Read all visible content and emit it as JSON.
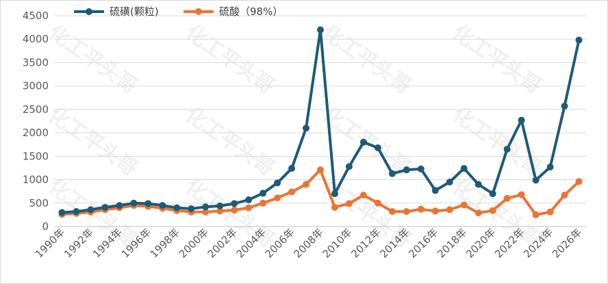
{
  "chart_data": {
    "type": "line",
    "title": "",
    "xlabel": "",
    "ylabel": "",
    "ylim": [
      0,
      4500
    ],
    "yticks": [
      0,
      500,
      1000,
      1500,
      2000,
      2500,
      3000,
      3500,
      4000,
      4500
    ],
    "grid": "horizontal",
    "legend_position": "top-left",
    "watermark": "化工平头哥",
    "x": [
      "1990年",
      "1991年",
      "1992年",
      "1993年",
      "1994年",
      "1995年",
      "1996年",
      "1997年",
      "1998年",
      "1999年",
      "2000年",
      "2001年",
      "2002年",
      "2003年",
      "2004年",
      "2005年",
      "2006年",
      "2007年",
      "2008年",
      "2009年",
      "2010年",
      "2011年",
      "2012年",
      "2013年",
      "2014年",
      "2015年",
      "2016年",
      "2017年",
      "2018年",
      "2019年",
      "2020年",
      "2021年",
      "2022年",
      "2023年",
      "2024年",
      "2025年",
      "2026年"
    ],
    "x_tick_labels": [
      "1990年",
      "1992年",
      "1994年",
      "1996年",
      "1998年",
      "2000年",
      "2002年",
      "2004年",
      "2006年",
      "2008年",
      "2010年",
      "2012年",
      "2014年",
      "2016年",
      "2018年",
      "2020年",
      "2022年",
      "2024年",
      "2026年"
    ],
    "series": [
      {
        "name": "硫磺(颗粒)",
        "color": "#1d5b78",
        "values": [
          300,
          320,
          360,
          410,
          450,
          500,
          490,
          450,
          400,
          380,
          420,
          440,
          490,
          570,
          710,
          930,
          1240,
          2100,
          4200,
          700,
          1280,
          1800,
          1680,
          1130,
          1210,
          1230,
          770,
          950,
          1240,
          900,
          700,
          1650,
          2270,
          990,
          1270,
          2570,
          3980
        ]
      },
      {
        "name": "硫酸（98%）",
        "color": "#ea7432",
        "values": [
          260,
          280,
          310,
          360,
          400,
          450,
          430,
          390,
          340,
          310,
          310,
          330,
          350,
          400,
          500,
          610,
          740,
          900,
          1210,
          410,
          490,
          670,
          500,
          320,
          320,
          370,
          330,
          360,
          460,
          290,
          340,
          600,
          680,
          250,
          310,
          670,
          960
        ]
      }
    ]
  }
}
